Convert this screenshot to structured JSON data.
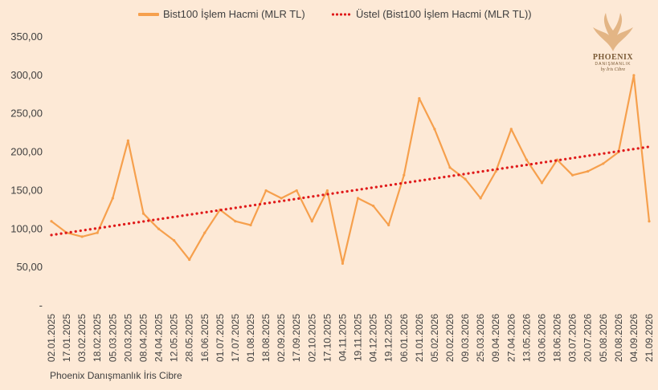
{
  "chart_data": {
    "type": "line",
    "title": "",
    "xlabel": "",
    "ylabel": "",
    "ylim": [
      0,
      350
    ],
    "y_ticks": [
      "-",
      "50,00",
      "100,00",
      "150,00",
      "200,00",
      "250,00",
      "300,00",
      "350,00"
    ],
    "x_tick_labels": [
      "02.01.2025",
      "17.01.2025",
      "03.02.2025",
      "18.02.2025",
      "05.03.2025",
      "20.03.2025",
      "08.04.2025",
      "24.04.2025",
      "12.05.2025",
      "28.05.2025",
      "16.06.2025",
      "01.07.2025",
      "17.07.2025",
      "01.08.2025",
      "18.08.2025",
      "02.09.2025",
      "17.09.2025",
      "02.10.2025",
      "17.10.2025",
      "04.11.2025",
      "19.11.2025",
      "04.12.2025",
      "19.12.2025",
      "06.01.2026",
      "21.01.2026",
      "05.02.2026",
      "20.02.2026",
      "09.03.2026",
      "25.03.2026",
      "09.04.2026",
      "27.04.2026",
      "13.05.2026",
      "03.06.2026",
      "18.06.2026",
      "03.07.2026",
      "20.07.2026",
      "05.08.2026",
      "20.08.2026",
      "04.09.2026",
      "21.09.2026"
    ],
    "grid": false,
    "legend": "top",
    "series": [
      {
        "name": "Bist100 İşlem Hacmi (MLR TL)",
        "style": "solid",
        "color": "#f6a04d",
        "x": [
          "02.01.2025",
          "17.01.2025",
          "03.02.2025",
          "18.02.2025",
          "05.03.2025",
          "20.03.2025",
          "08.04.2025",
          "24.04.2025",
          "12.05.2025",
          "28.05.2025",
          "16.06.2025",
          "01.07.2025",
          "17.07.2025",
          "01.08.2025",
          "18.08.2025",
          "02.09.2025",
          "17.09.2025",
          "02.10.2025",
          "17.10.2025",
          "04.11.2025",
          "19.11.2025",
          "04.12.2025",
          "19.12.2025",
          "06.01.2026",
          "21.01.2026",
          "05.02.2026",
          "20.02.2026",
          "09.03.2026",
          "25.03.2026",
          "09.04.2026",
          "27.04.2026",
          "13.05.2026",
          "03.06.2026",
          "18.06.2026",
          "03.07.2026",
          "20.07.2026",
          "05.08.2026",
          "20.08.2026",
          "04.09.2026",
          "21.09.2026"
        ],
        "values": [
          110,
          95,
          90,
          95,
          140,
          215,
          120,
          100,
          85,
          60,
          95,
          125,
          110,
          105,
          150,
          140,
          150,
          110,
          150,
          55,
          140,
          130,
          105,
          170,
          270,
          230,
          180,
          165,
          140,
          175,
          230,
          190,
          160,
          190,
          170,
          175,
          185,
          200,
          300,
          110
        ]
      },
      {
        "name": "Üstel (Bist100 İşlem Hacmi (MLR TL))",
        "style": "dotted",
        "color": "#e01b1b",
        "x": [
          "02.01.2025",
          "21.09.2026"
        ],
        "values": [
          92,
          207
        ]
      }
    ]
  },
  "legend": {
    "series1": "Bist100 İşlem Hacmi (MLR TL)",
    "series2": "Üstel (Bist100 İşlem Hacmi (MLR TL))"
  },
  "footer": "Phoenix Danışmanlık İris Cibre",
  "logo": {
    "name": "PHOENIX",
    "sub": "DANIŞMANLIK",
    "sign": "by İris Cibre"
  },
  "colors": {
    "background": "#fde9d6",
    "series_line": "#f6a04d",
    "trend_line": "#e01b1b",
    "axis_text": "#404040"
  }
}
